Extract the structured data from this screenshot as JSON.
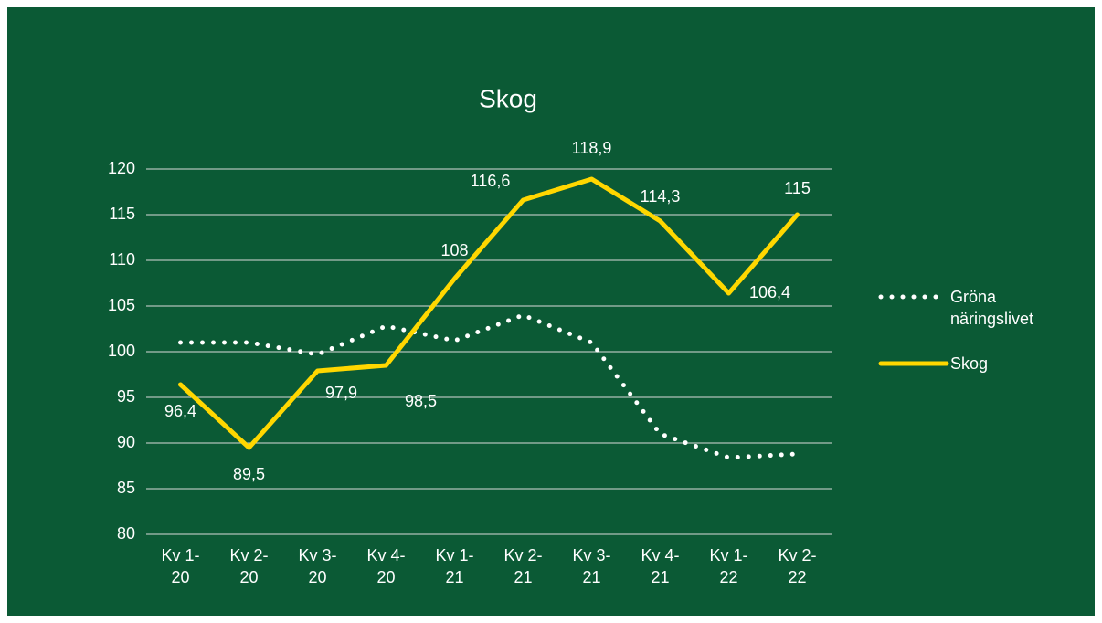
{
  "chart_data": {
    "type": "line",
    "title": "Skog",
    "categories": [
      "Kv 1-20",
      "Kv 2-20",
      "Kv 3-20",
      "Kv 4-20",
      "Kv 1-21",
      "Kv 2-21",
      "Kv 3-21",
      "Kv 4-21",
      "Kv 1-22",
      "Kv 2-22"
    ],
    "series": [
      {
        "name": "Gröna näringslivet",
        "color": "#ffffff",
        "style": "dotted",
        "values": [
          101,
          101,
          99.7,
          102.8,
          101.2,
          104,
          101,
          91,
          88.4,
          88.8
        ]
      },
      {
        "name": "Skog",
        "color": "#ffd700",
        "style": "solid",
        "values": [
          96.4,
          89.5,
          97.9,
          98.5,
          108,
          116.6,
          118.9,
          114.3,
          106.4,
          115
        ],
        "value_labels": [
          "96,4",
          "89,5",
          "97,9",
          "98,5",
          "108",
          "116,6",
          "118,9",
          "114,3",
          "106,4",
          "115"
        ]
      }
    ],
    "ylim": [
      80,
      120
    ],
    "yticks": [
      80,
      85,
      90,
      95,
      100,
      105,
      110,
      115,
      120
    ],
    "grid": true,
    "legend": "right"
  }
}
